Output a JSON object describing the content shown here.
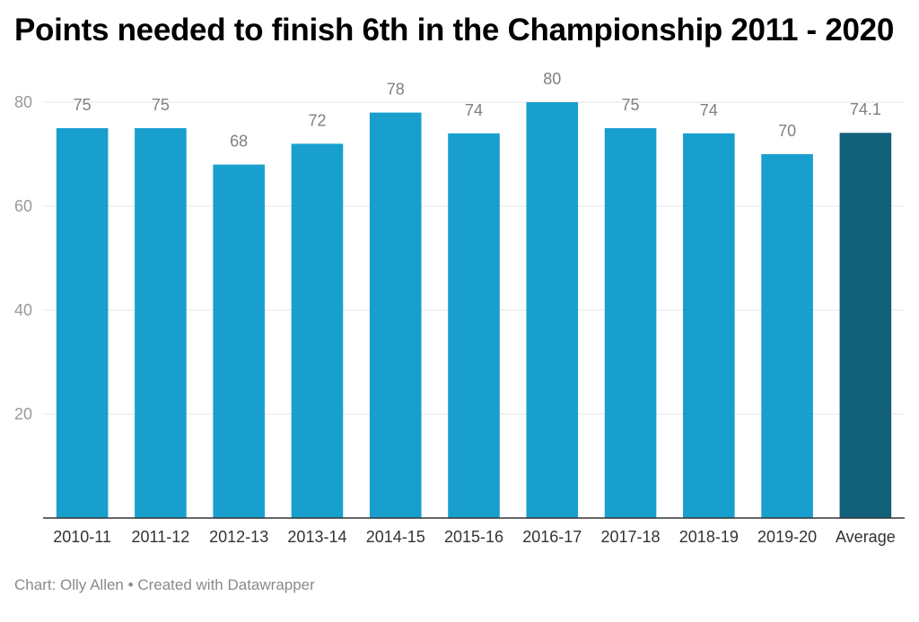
{
  "chart_data": {
    "type": "bar",
    "title": "Points needed to finish 6th in the Championship 2011 - 2020",
    "categories": [
      "2010-11",
      "2011-12",
      "2012-13",
      "2013-14",
      "2014-15",
      "2015-16",
      "2016-17",
      "2017-18",
      "2018-19",
      "2019-20",
      "Average"
    ],
    "values": [
      75,
      75,
      68,
      72,
      78,
      74,
      80,
      75,
      74,
      70,
      74.1
    ],
    "value_labels": [
      "75",
      "75",
      "68",
      "72",
      "78",
      "74",
      "80",
      "75",
      "74",
      "70",
      "74.1"
    ],
    "yticks": [
      20,
      40,
      60,
      80
    ],
    "ylim": [
      0,
      80
    ],
    "xlabel": "",
    "ylabel": "",
    "grid": true,
    "colors": {
      "bar": "#199fce",
      "highlight": "#13607a",
      "grid": "#e6e6e6",
      "axis": "#333333"
    },
    "highlight_category": "Average"
  },
  "footer": {
    "credit": "Chart: Olly Allen",
    "separator": "•",
    "created_with": "Created with Datawrapper"
  }
}
